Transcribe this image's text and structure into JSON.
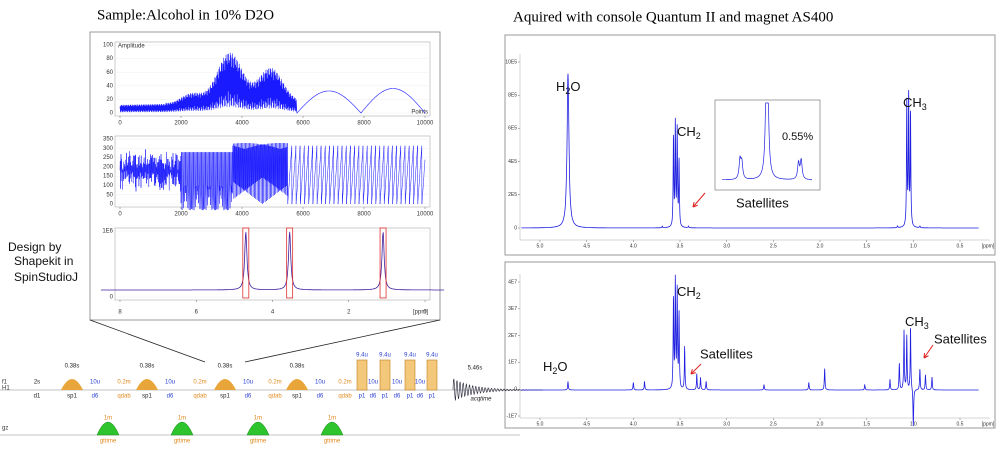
{
  "titles": {
    "left": "Sample:Alcohol in 10% D2O",
    "right": "Aquired with console Quantum II and magnet AS400"
  },
  "design_note": [
    "Design by",
    "Shapekit in",
    "SpinStudioJ"
  ],
  "shape_panels": {
    "amplitude": {
      "label": "Amplitude",
      "unit": "Points",
      "xticks": [
        0,
        2000,
        4000,
        6000,
        8000,
        10000
      ],
      "yticks": [
        100,
        80,
        60,
        40,
        20,
        0
      ]
    },
    "phase": {
      "xticks": [
        0,
        2000,
        4000,
        6000,
        8000,
        10000
      ],
      "yticks": [
        350,
        300,
        250,
        200,
        150,
        100,
        50,
        0
      ]
    },
    "excitation": {
      "unit": "[ppm]",
      "xticks": [
        8,
        6,
        4,
        2,
        0
      ],
      "yticks": [
        "1E6",
        0
      ]
    }
  },
  "sequence": {
    "channels": [
      "f1",
      "H1",
      "gz"
    ],
    "f1_events": [
      {
        "name": "d1",
        "dur": "2s"
      },
      {
        "name": "sp1",
        "dur": "0.38s"
      },
      {
        "name": "d6",
        "dur": "10u"
      },
      {
        "name": "qdab",
        "dur": "0.2m"
      },
      {
        "name": "sp1",
        "dur": "0.38s"
      },
      {
        "name": "d6",
        "dur": "10u"
      },
      {
        "name": "qdab",
        "dur": "0.2m"
      },
      {
        "name": "sp1",
        "dur": "0.38s"
      },
      {
        "name": "d6",
        "dur": "10u"
      },
      {
        "name": "qdab",
        "dur": "0.2m"
      },
      {
        "name": "sp1",
        "dur": "0.38s"
      },
      {
        "name": "d6",
        "dur": "10u"
      },
      {
        "name": "qdab",
        "dur": "0.2m"
      },
      {
        "name": "p1",
        "dur": "9.4u"
      },
      {
        "name": "d6",
        "dur": "10u"
      },
      {
        "name": "p1",
        "dur": "9.4u"
      },
      {
        "name": "d6",
        "dur": "10u"
      },
      {
        "name": "p1",
        "dur": "9.4u"
      },
      {
        "name": "d6",
        "dur": "10u"
      },
      {
        "name": "p1",
        "dur": "9.4u"
      },
      {
        "name": "acqtime",
        "dur": "5.46s"
      }
    ],
    "gz_events": [
      {
        "name": "gttime",
        "dur": "1m"
      },
      {
        "name": "gttime",
        "dur": "1m"
      },
      {
        "name": "gttime",
        "dur": "1m"
      },
      {
        "name": "gttime",
        "dur": "1m"
      }
    ]
  },
  "spectra": {
    "top": {
      "unit": "[ppm]",
      "xticks": [
        "5.0",
        "4.5",
        "4.0",
        "3.5",
        "3.0",
        "2.5",
        "2.0",
        "1.5",
        "1.0",
        "0.5"
      ],
      "yticks": [
        "10E5",
        "8E5",
        "6E5",
        "4E5",
        "2E5",
        "0"
      ],
      "labels": {
        "h2o": {
          "text": "H",
          "sub": "2",
          "tail": "O"
        },
        "ch2": {
          "text": "CH",
          "sub": "2"
        },
        "ch3": {
          "text": "CH",
          "sub": "3"
        },
        "satellites": "Satellites",
        "inset_percent": "0.55%"
      }
    },
    "bottom": {
      "unit": "[ppm]",
      "xticks": [
        "5.0",
        "4.5",
        "4.0",
        "3.5",
        "3.0",
        "2.5",
        "2.0",
        "1.5",
        "1.0",
        "0.5"
      ],
      "yticks": [
        "4E7",
        "3E7",
        "2E7",
        "1E7",
        "0",
        "-1E7"
      ],
      "labels": {
        "h2o": {
          "text": "H",
          "sub": "2",
          "tail": "O"
        },
        "ch2": {
          "text": "CH",
          "sub": "2"
        },
        "ch3": {
          "text": "CH",
          "sub": "3"
        },
        "satellites_a": "Satellites",
        "satellites_b": "Satellites"
      }
    }
  }
}
